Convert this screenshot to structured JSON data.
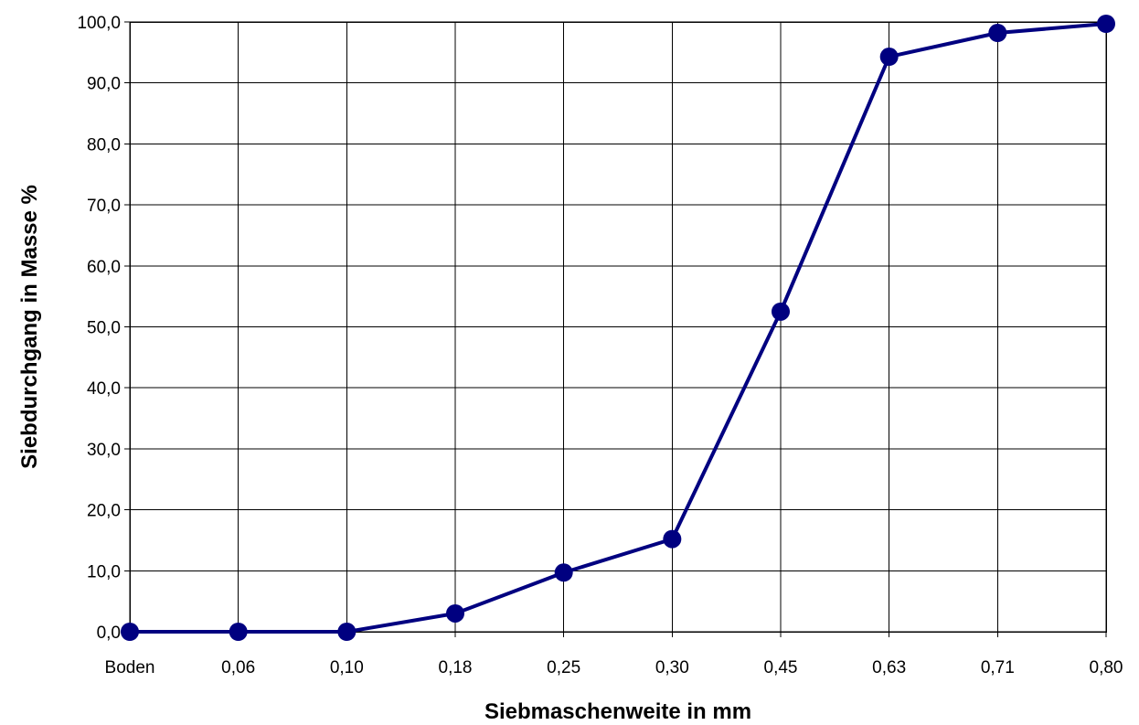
{
  "chart_data": {
    "type": "line",
    "title": "",
    "xlabel": "Siebmaschenweite in mm",
    "ylabel": "Siebdurchgang in Masse %",
    "categories": [
      "Boden",
      "0,06",
      "0,10",
      "0,18",
      "0,25",
      "0,30",
      "0,45",
      "0,63",
      "0,71",
      "0,80"
    ],
    "series": [
      {
        "values": [
          0.0,
          0.0,
          0.0,
          3.0,
          9.7,
          15.2,
          52.5,
          94.3,
          98.2,
          99.7
        ]
      }
    ],
    "ylim": [
      0,
      100
    ],
    "yticks": [
      "0,0",
      "10,0",
      "20,0",
      "30,0",
      "40,0",
      "50,0",
      "60,0",
      "70,0",
      "80,0",
      "90,0",
      "100,0"
    ],
    "grid": true,
    "legend": "none",
    "line_color": "#000080"
  }
}
